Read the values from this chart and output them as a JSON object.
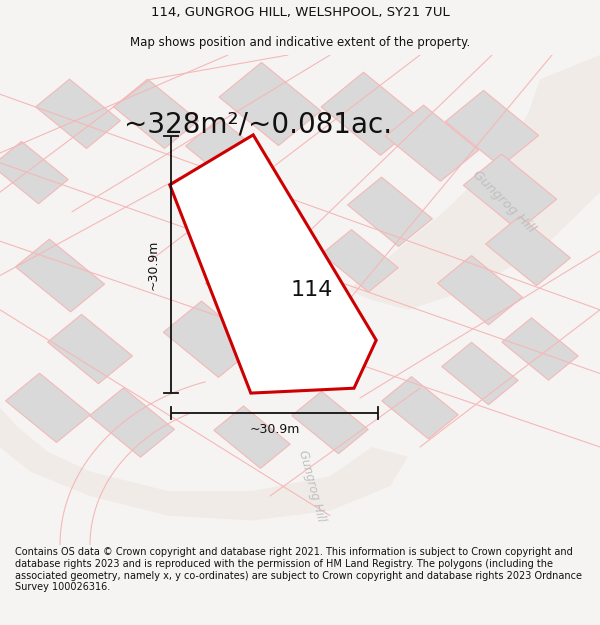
{
  "title_line1": "114, GUNGROG HILL, WELSHPOOL, SY21 7UL",
  "title_line2": "Map shows position and indicative extent of the property.",
  "area_label": "~328m²/~0.081ac.",
  "plot_number": "114",
  "dim_width": "~30.9m",
  "dim_height": "~30.9m",
  "footer_text": "Contains OS data © Crown copyright and database right 2021. This information is subject to Crown copyright and database rights 2023 and is reproduced with the permission of HM Land Registry. The polygons (including the associated geometry, namely x, y co-ordinates) are subject to Crown copyright and database rights 2023 Ordnance Survey 100026316.",
  "bg_color": "#f5f4f2",
  "map_bg": "#ffffff",
  "plot_fill": "#ffffff",
  "plot_edge": "#cc0000",
  "neighbor_fill": "#d9d9d9",
  "neighbor_edge": "#f5b8b8",
  "boundary_color": "#f5b8b8",
  "road_label_color": "#c0c0c0",
  "dim_line_color": "#111111",
  "title_fontsize": 9.5,
  "subtitle_fontsize": 8.5,
  "area_fontsize": 20,
  "plot_num_fontsize": 16,
  "footer_fontsize": 7.0,
  "dim_fontsize": 9,
  "road_label_fontsize": 9.5,
  "road_label_fontsize2": 8.5
}
